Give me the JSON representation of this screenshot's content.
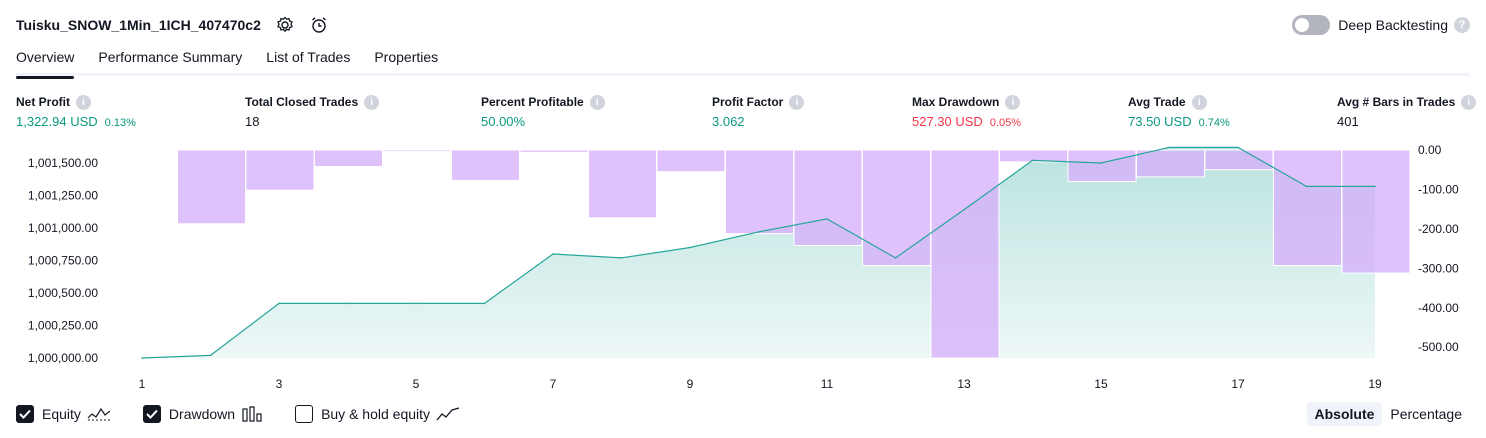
{
  "header": {
    "strategy_name": "Tuisku_SNOW_1Min_1ICH_407470c2",
    "settings_icon": "settings-gear-icon",
    "alert_icon": "alarm-clock-icon",
    "deep_backtesting_label": "Deep Backtesting",
    "deep_backtesting_enabled": false
  },
  "tabs": [
    {
      "label": "Overview",
      "active": true
    },
    {
      "label": "Performance Summary",
      "active": false
    },
    {
      "label": "List of Trades",
      "active": false
    },
    {
      "label": "Properties",
      "active": false
    }
  ],
  "metrics": [
    {
      "label": "Net Profit",
      "value": "1,322.94 USD",
      "percent": "0.13%",
      "tone": "green"
    },
    {
      "label": "Total Closed Trades",
      "value": "18",
      "percent": "",
      "tone": "dark"
    },
    {
      "label": "Percent Profitable",
      "value": "50.00%",
      "percent": "",
      "tone": "green"
    },
    {
      "label": "Profit Factor",
      "value": "3.062",
      "percent": "",
      "tone": "green"
    },
    {
      "label": "Max Drawdown",
      "value": "527.30 USD",
      "percent": "0.05%",
      "tone": "red"
    },
    {
      "label": "Avg Trade",
      "value": "73.50 USD",
      "percent": "0.74%",
      "tone": "green"
    },
    {
      "label": "Avg # Bars in Trades",
      "value": "401",
      "percent": "",
      "tone": "dark"
    }
  ],
  "chart_data": {
    "type": "line",
    "x_ticks": [
      1,
      3,
      5,
      7,
      9,
      11,
      13,
      15,
      17,
      19
    ],
    "left_axis": {
      "ticks": [
        "1,000,000.00",
        "1,000,250.00",
        "1,000,500.00",
        "1,000,750.00",
        "1,001,000.00",
        "1,001,250.00",
        "1,001,500.00"
      ],
      "range": [
        1000000,
        1001600
      ]
    },
    "right_axis": {
      "ticks": [
        "0.00",
        "-100.00",
        "-200.00",
        "-300.00",
        "-400.00",
        "-500.00"
      ],
      "range": [
        -527.3,
        0
      ]
    },
    "series": [
      {
        "name": "Equity",
        "axis": "left",
        "x": [
          1,
          2,
          3,
          4,
          5,
          6,
          7,
          8,
          9,
          10,
          11,
          12,
          13,
          14,
          15,
          16,
          17,
          18,
          19
        ],
        "values": [
          1000000,
          1000020,
          1000420,
          1000420,
          1000420,
          1000420,
          1000800,
          1000770,
          1000850,
          1000970,
          1001070,
          1000770,
          1001140,
          1001520,
          1001500,
          1001620,
          1001620,
          1001320,
          1001320
        ]
      },
      {
        "name": "Drawdown",
        "axis": "right",
        "x": [
          1,
          2,
          3,
          4,
          5,
          6,
          7,
          8,
          9,
          10,
          11,
          12,
          13,
          14,
          15,
          16,
          17,
          18,
          19
        ],
        "values": [
          -1,
          -187,
          -102,
          -42,
          -4,
          -77,
          -6,
          -172,
          -55,
          -212,
          -242,
          -293,
          -527.3,
          -30,
          -80,
          -68,
          -50,
          -293,
          -312
        ]
      }
    ],
    "colors": {
      "equity_line": "#26a69a",
      "equity_fill": "#26a69a",
      "drawdown_fill": "#d6b0fa",
      "grid": "#ffffff"
    }
  },
  "legend": {
    "equity": {
      "label": "Equity",
      "checked": true,
      "icon": "equity-wave-icon"
    },
    "drawdown": {
      "label": "Drawdown",
      "checked": true,
      "icon": "drawdown-bars-icon"
    },
    "buy_hold": {
      "label": "Buy & hold equity",
      "checked": false,
      "icon": "buy-hold-line-icon"
    }
  },
  "modes": [
    {
      "label": "Absolute",
      "active": true
    },
    {
      "label": "Percentage",
      "active": false
    }
  ]
}
